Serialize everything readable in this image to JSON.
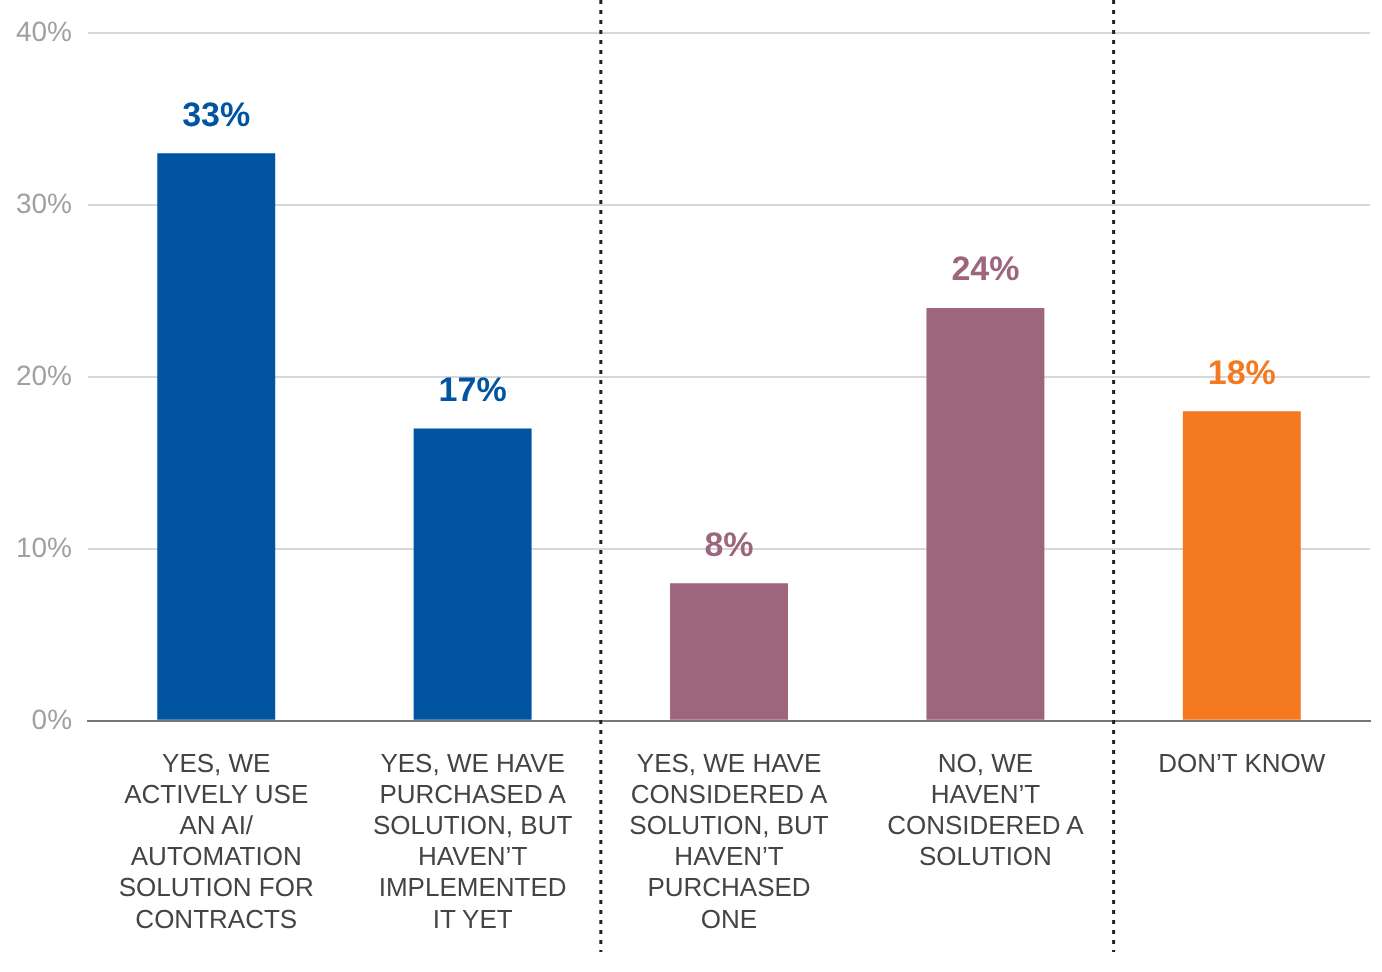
{
  "chart_data": {
    "type": "bar",
    "categories": [
      "YES, WE ACTIVELY USE AN AI/ AUTOMATION SOLUTION FOR CONTRACTS",
      "YES, WE HAVE PURCHASED A SOLUTION, BUT HAVEN’T IMPLEMENTED IT YET",
      "YES, WE HAVE CONSIDERED A SOLUTION, BUT HAVEN’T PURCHASED ONE",
      "NO, WE HAVEN’T CONSIDERED A SOLUTION",
      "DON’T KNOW"
    ],
    "values": [
      33,
      17,
      8,
      24,
      18
    ],
    "colors": [
      "#0054a0",
      "#0054a0",
      "#9e667d",
      "#9e667d",
      "#f47920"
    ],
    "value_labels": [
      "33%",
      "17%",
      "8%",
      "24%",
      "18%"
    ],
    "ylim": [
      0,
      40
    ],
    "yticks": [
      {
        "value": 0,
        "label": "0%"
      },
      {
        "value": 10,
        "label": "10%"
      },
      {
        "value": 20,
        "label": "20%"
      },
      {
        "value": 30,
        "label": "30%"
      },
      {
        "value": 40,
        "label": "40%"
      }
    ],
    "grid": "y",
    "legend": false
  }
}
